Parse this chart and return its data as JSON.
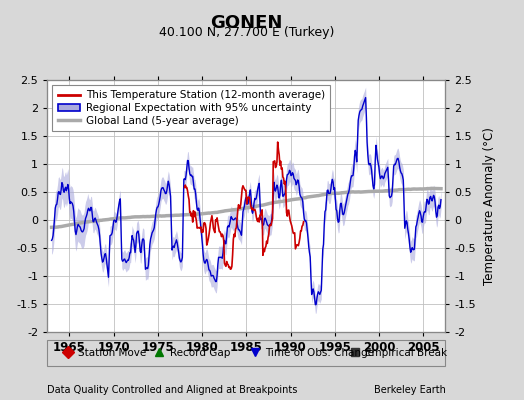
{
  "title": "GONEN",
  "subtitle": "40.100 N, 27.700 E (Turkey)",
  "ylabel": "Temperature Anomaly (°C)",
  "footer_left": "Data Quality Controlled and Aligned at Breakpoints",
  "footer_right": "Berkeley Earth",
  "xlim": [
    1962.5,
    2007.5
  ],
  "ylim": [
    -2.0,
    2.5
  ],
  "xticks": [
    1965,
    1970,
    1975,
    1980,
    1985,
    1990,
    1995,
    2000,
    2005
  ],
  "yticks_left": [
    -2.0,
    -1.5,
    -1.0,
    -0.5,
    0.0,
    0.5,
    1.0,
    1.5,
    2.0,
    2.5
  ],
  "ytick_labels_left": [
    "-2",
    "-1.5",
    "-1",
    "-0.5",
    "0",
    "0.5",
    "1",
    "1.5",
    "2",
    "2.5"
  ],
  "yticks_right": [
    -2.0,
    -1.5,
    -1.0,
    -0.5,
    0.0,
    0.5,
    1.0,
    1.5,
    2.0,
    2.5
  ],
  "ytick_labels_right": [
    "-2",
    "-1.5",
    "-1",
    "-0.5",
    "0",
    "0.5",
    "1",
    "1.5",
    "2",
    "2.5"
  ],
  "bg_color": "#d8d8d8",
  "plot_bg_color": "#ffffff",
  "grid_color": "#c0c0c0",
  "blue_line_color": "#0000cc",
  "blue_fill_color": "#aaaadd",
  "red_line_color": "#cc0000",
  "gray_line_color": "#aaaaaa",
  "legend2_items": [
    {
      "label": "Station Move",
      "marker": "D",
      "color": "#cc0000"
    },
    {
      "label": "Record Gap",
      "marker": "^",
      "color": "#007700"
    },
    {
      "label": "Time of Obs. Change",
      "marker": "v",
      "color": "#0000cc"
    },
    {
      "label": "Empirical Break",
      "marker": "s",
      "color": "#333333"
    }
  ]
}
